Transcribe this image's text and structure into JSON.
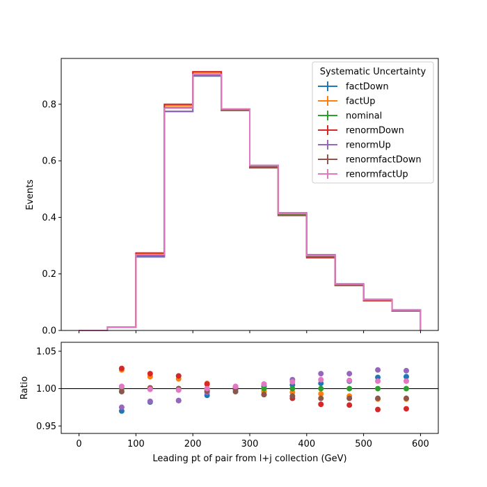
{
  "chart_data": [
    {
      "type": "line",
      "ylabel": "Events",
      "ylim": [
        0.0,
        0.962
      ],
      "xlim": [
        -31.25,
        631.25
      ],
      "yticks": [
        "0.0",
        "0.2",
        "0.4",
        "0.6",
        "0.8"
      ],
      "ytick_values": [
        0.0,
        0.2,
        0.4,
        0.6,
        0.8
      ],
      "grid": false,
      "legend_title": "Systematic Uncertainty",
      "legend_position": "top-right",
      "bin_edges": [
        0,
        50,
        100,
        150,
        200,
        250,
        300,
        350,
        400,
        450,
        500,
        550,
        600
      ],
      "series": [
        {
          "name": "factDown",
          "color": "#1f77b4",
          "values": [
            0.0,
            0.012,
            0.263,
            0.775,
            0.9,
            0.781,
            0.582,
            0.413,
            0.266,
            0.163,
            0.109,
            0.072
          ]
        },
        {
          "name": "factUp",
          "color": "#ff7f0e",
          "values": [
            0.0,
            0.012,
            0.271,
            0.795,
            0.913,
            0.782,
            0.578,
            0.41,
            0.26,
            0.161,
            0.108,
            0.071
          ]
        },
        {
          "name": "nominal",
          "color": "#2ca02c",
          "values": [
            0.0,
            0.012,
            0.267,
            0.787,
            0.907,
            0.781,
            0.58,
            0.412,
            0.263,
            0.162,
            0.108,
            0.071
          ]
        },
        {
          "name": "renormDown",
          "color": "#d62728",
          "values": [
            0.0,
            0.012,
            0.274,
            0.8,
            0.915,
            0.781,
            0.576,
            0.407,
            0.257,
            0.159,
            0.105,
            0.069
          ]
        },
        {
          "name": "renormUp",
          "color": "#9467bd",
          "values": [
            0.0,
            0.012,
            0.26,
            0.774,
            0.902,
            0.783,
            0.584,
            0.416,
            0.268,
            0.165,
            0.11,
            0.073
          ]
        },
        {
          "name": "renormfactDown",
          "color": "#8c564b",
          "values": [
            0.0,
            0.012,
            0.266,
            0.788,
            0.905,
            0.778,
            0.575,
            0.407,
            0.26,
            0.16,
            0.107,
            0.07
          ]
        },
        {
          "name": "renormfactUp",
          "color": "#e377c2",
          "values": [
            0.0,
            0.012,
            0.268,
            0.786,
            0.906,
            0.783,
            0.584,
            0.414,
            0.265,
            0.164,
            0.109,
            0.072
          ]
        }
      ]
    },
    {
      "type": "scatter",
      "xlabel": "Leading pt of pair from l+j collection (GeV)",
      "ylabel": "Ratio",
      "ylim": [
        0.94,
        1.062
      ],
      "xlim": [
        -31.25,
        631.25
      ],
      "yticks": [
        "0.95",
        "1.00",
        "1.05"
      ],
      "ytick_values": [
        0.95,
        1.0,
        1.05
      ],
      "xticks": [
        "0",
        "100",
        "200",
        "300",
        "400",
        "500",
        "600"
      ],
      "xtick_values": [
        0,
        100,
        200,
        300,
        400,
        500,
        600
      ],
      "reference_line": 1.0,
      "grid": false,
      "x": [
        75,
        125,
        175,
        225,
        275,
        325,
        375,
        425,
        475,
        525,
        575
      ],
      "series": [
        {
          "name": "factDown",
          "color": "#1f77b4",
          "values": [
            0.97,
            0.982,
            0.984,
            0.991,
            0.999,
            1.003,
            1.005,
            1.007,
            1.01,
            1.015,
            1.016
          ]
        },
        {
          "name": "factUp",
          "color": "#ff7f0e",
          "values": [
            1.025,
            1.016,
            1.013,
            1.007,
            1.001,
            0.996,
            0.995,
            0.993,
            0.99,
            0.986,
            0.986
          ]
        },
        {
          "name": "nominal",
          "color": "#2ca02c",
          "values": [
            1.0,
            1.0,
            1.0,
            1.0,
            1.0,
            1.0,
            1.0,
            1.0,
            1.0,
            1.0,
            1.0
          ]
        },
        {
          "name": "renormDown",
          "color": "#d62728",
          "values": [
            1.027,
            1.02,
            1.017,
            1.006,
            1.0,
            0.992,
            0.987,
            0.979,
            0.978,
            0.972,
            0.973
          ]
        },
        {
          "name": "renormUp",
          "color": "#9467bd",
          "values": [
            0.975,
            0.983,
            0.984,
            0.995,
            1.002,
            1.006,
            1.012,
            1.02,
            1.02,
            1.025,
            1.024
          ]
        },
        {
          "name": "renormfactDown",
          "color": "#8c564b",
          "values": [
            0.996,
            1.001,
            1.0,
            0.997,
            0.996,
            0.992,
            0.99,
            0.987,
            0.987,
            0.987,
            0.987
          ]
        },
        {
          "name": "renormfactUp",
          "color": "#e377c2",
          "values": [
            1.003,
            0.999,
            0.998,
            1.0,
            1.003,
            1.006,
            1.009,
            1.012,
            1.011,
            1.01,
            1.01
          ]
        }
      ]
    }
  ]
}
